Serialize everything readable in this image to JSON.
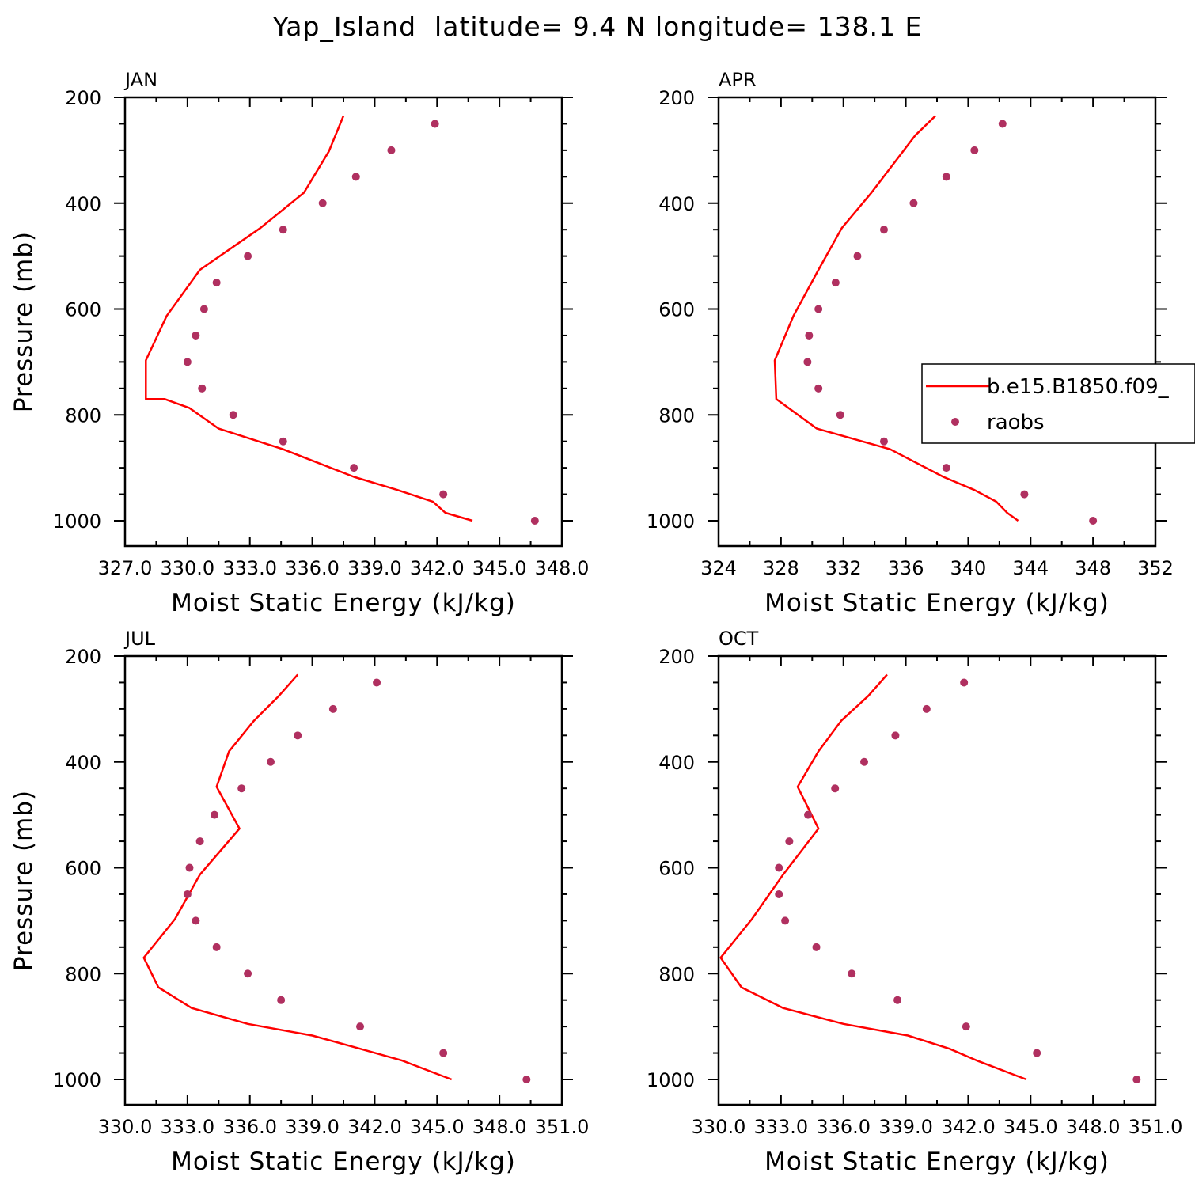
{
  "title": "Yap_Island  latitude= 9.4 N longitude= 138.1 E",
  "legend": {
    "entries": [
      {
        "label": "b.e15.B1850.f09_",
        "kind": "line",
        "color": "#ff0000"
      },
      {
        "label": "raobs",
        "kind": "marker",
        "color": "#b03060"
      }
    ]
  },
  "chart_data": [
    {
      "type": "line",
      "title": "JAN",
      "xlabel": "Moist Static Energy (kJ/kg)",
      "ylabel": "Pressure (mb)",
      "xlim": [
        327.0,
        348.0
      ],
      "ylim": [
        1000,
        200
      ],
      "xticks": [
        327.0,
        330.0,
        333.0,
        336.0,
        339.0,
        342.0,
        345.0,
        348.0
      ],
      "xtick_labels": [
        "327.0",
        "330.0",
        "333.0",
        "336.0",
        "339.0",
        "342.0",
        "345.0",
        "348.0"
      ],
      "yticks": [
        200,
        400,
        600,
        800,
        1000
      ],
      "ytick_labels": [
        "200",
        "400",
        "600",
        "800",
        "1000"
      ],
      "series": [
        {
          "name": "b.e15.B1850.f09_",
          "kind": "line",
          "color": "#ff0000",
          "x": [
            343.7,
            342.4,
            341.8,
            340.1,
            338.0,
            334.6,
            331.5,
            330.1,
            328.9,
            328.0,
            328.0,
            329.0,
            330.6,
            333.5,
            335.6,
            336.8,
            337.5
          ],
          "y": [
            1000,
            985,
            964,
            942,
            917,
            865,
            826,
            787,
            770,
            770,
            697,
            613,
            526,
            447,
            380,
            302,
            235
          ]
        },
        {
          "name": "raobs",
          "kind": "scatter",
          "color": "#b03060",
          "x": [
            346.7,
            342.3,
            338.0,
            334.6,
            332.2,
            330.7,
            330.0,
            330.4,
            330.8,
            331.4,
            332.9,
            334.6,
            336.5,
            338.1,
            339.8,
            341.9
          ],
          "y": [
            1000,
            950,
            900,
            850,
            800,
            750,
            700,
            650,
            600,
            550,
            500,
            450,
            400,
            350,
            300,
            250
          ]
        }
      ]
    },
    {
      "type": "line",
      "title": "APR",
      "xlabel": "Moist Static Energy (kJ/kg)",
      "ylabel": "",
      "xlim": [
        324,
        352
      ],
      "ylim": [
        1000,
        200
      ],
      "xticks": [
        324,
        328,
        332,
        336,
        340,
        344,
        348,
        352
      ],
      "xtick_labels": [
        "324",
        "328",
        "332",
        "336",
        "340",
        "344",
        "348",
        "352"
      ],
      "yticks": [
        200,
        400,
        600,
        800,
        1000
      ],
      "ytick_labels": [
        "200",
        "400",
        "600",
        "800",
        "1000"
      ],
      "series": [
        {
          "name": "b.e15.B1850.f09_",
          "kind": "line",
          "color": "#ff0000",
          "x": [
            343.2,
            342.5,
            341.8,
            340.4,
            338.4,
            335.0,
            330.3,
            327.7,
            327.6,
            328.8,
            330.4,
            331.9,
            333.8,
            336.6,
            337.9
          ],
          "y": [
            1000,
            985,
            964,
            942,
            917,
            865,
            826,
            770,
            697,
            613,
            526,
            447,
            380,
            272,
            235
          ]
        },
        {
          "name": "raobs",
          "kind": "scatter",
          "color": "#b03060",
          "x": [
            348.0,
            343.6,
            338.6,
            334.6,
            331.8,
            330.4,
            329.7,
            329.8,
            330.4,
            331.5,
            332.9,
            334.6,
            336.5,
            338.6,
            340.4,
            342.2
          ],
          "y": [
            1000,
            950,
            900,
            850,
            800,
            750,
            700,
            650,
            600,
            550,
            500,
            450,
            400,
            350,
            300,
            250
          ]
        }
      ]
    },
    {
      "type": "line",
      "title": "JUL",
      "xlabel": "Moist Static Energy (kJ/kg)",
      "ylabel": "Pressure (mb)",
      "xlim": [
        330.0,
        351.0
      ],
      "ylim": [
        1000,
        200
      ],
      "xticks": [
        330.0,
        333.0,
        336.0,
        339.0,
        342.0,
        345.0,
        348.0,
        351.0
      ],
      "xtick_labels": [
        "330.0",
        "333.0",
        "336.0",
        "339.0",
        "342.0",
        "345.0",
        "348.0",
        "351.0"
      ],
      "yticks": [
        200,
        400,
        600,
        800,
        1000
      ],
      "ytick_labels": [
        "200",
        "400",
        "600",
        "800",
        "1000"
      ],
      "series": [
        {
          "name": "b.e15.B1850.f09_",
          "kind": "line",
          "color": "#ff0000",
          "x": [
            345.7,
            344.7,
            343.3,
            341.3,
            339.0,
            335.9,
            333.2,
            331.6,
            330.9,
            332.4,
            333.6,
            335.5,
            334.4,
            335.0,
            336.2,
            337.4,
            338.3
          ],
          "y": [
            1000,
            985,
            964,
            942,
            917,
            895,
            865,
            826,
            770,
            697,
            613,
            526,
            447,
            380,
            322,
            275,
            235
          ]
        },
        {
          "name": "raobs",
          "kind": "scatter",
          "color": "#b03060",
          "x": [
            349.3,
            345.3,
            341.3,
            337.5,
            335.9,
            334.4,
            333.4,
            333.0,
            333.1,
            333.6,
            334.3,
            335.6,
            337.0,
            338.3,
            340.0,
            342.1
          ],
          "y": [
            1000,
            950,
            900,
            850,
            800,
            750,
            700,
            650,
            600,
            550,
            500,
            450,
            400,
            350,
            300,
            250
          ]
        }
      ]
    },
    {
      "type": "line",
      "title": "OCT",
      "xlabel": "Moist Static Energy (kJ/kg)",
      "ylabel": "",
      "xlim": [
        330.0,
        351.0
      ],
      "ylim": [
        1000,
        200
      ],
      "xticks": [
        330.0,
        333.0,
        336.0,
        339.0,
        342.0,
        345.0,
        348.0,
        351.0
      ],
      "xtick_labels": [
        "330.0",
        "333.0",
        "336.0",
        "339.0",
        "342.0",
        "345.0",
        "348.0",
        "351.0"
      ],
      "yticks": [
        200,
        400,
        600,
        800,
        1000
      ],
      "ytick_labels": [
        "200",
        "400",
        "600",
        "800",
        "1000"
      ],
      "series": [
        {
          "name": "b.e15.B1850.f09_",
          "kind": "line",
          "color": "#ff0000",
          "x": [
            344.8,
            343.8,
            342.4,
            341.1,
            339.1,
            336.0,
            333.1,
            331.1,
            330.1,
            331.6,
            333.1,
            334.8,
            333.8,
            334.8,
            335.9,
            337.2,
            338.1
          ],
          "y": [
            1000,
            985,
            964,
            942,
            917,
            895,
            865,
            826,
            770,
            697,
            613,
            526,
            447,
            380,
            322,
            275,
            235
          ]
        },
        {
          "name": "raobs",
          "kind": "scatter",
          "color": "#b03060",
          "x": [
            350.1,
            345.3,
            341.9,
            338.6,
            336.4,
            334.7,
            333.2,
            332.9,
            332.9,
            333.4,
            334.3,
            335.6,
            337.0,
            338.5,
            340.0,
            341.8
          ],
          "y": [
            1000,
            950,
            900,
            850,
            800,
            750,
            700,
            650,
            600,
            550,
            500,
            450,
            400,
            350,
            300,
            250
          ]
        }
      ]
    }
  ]
}
